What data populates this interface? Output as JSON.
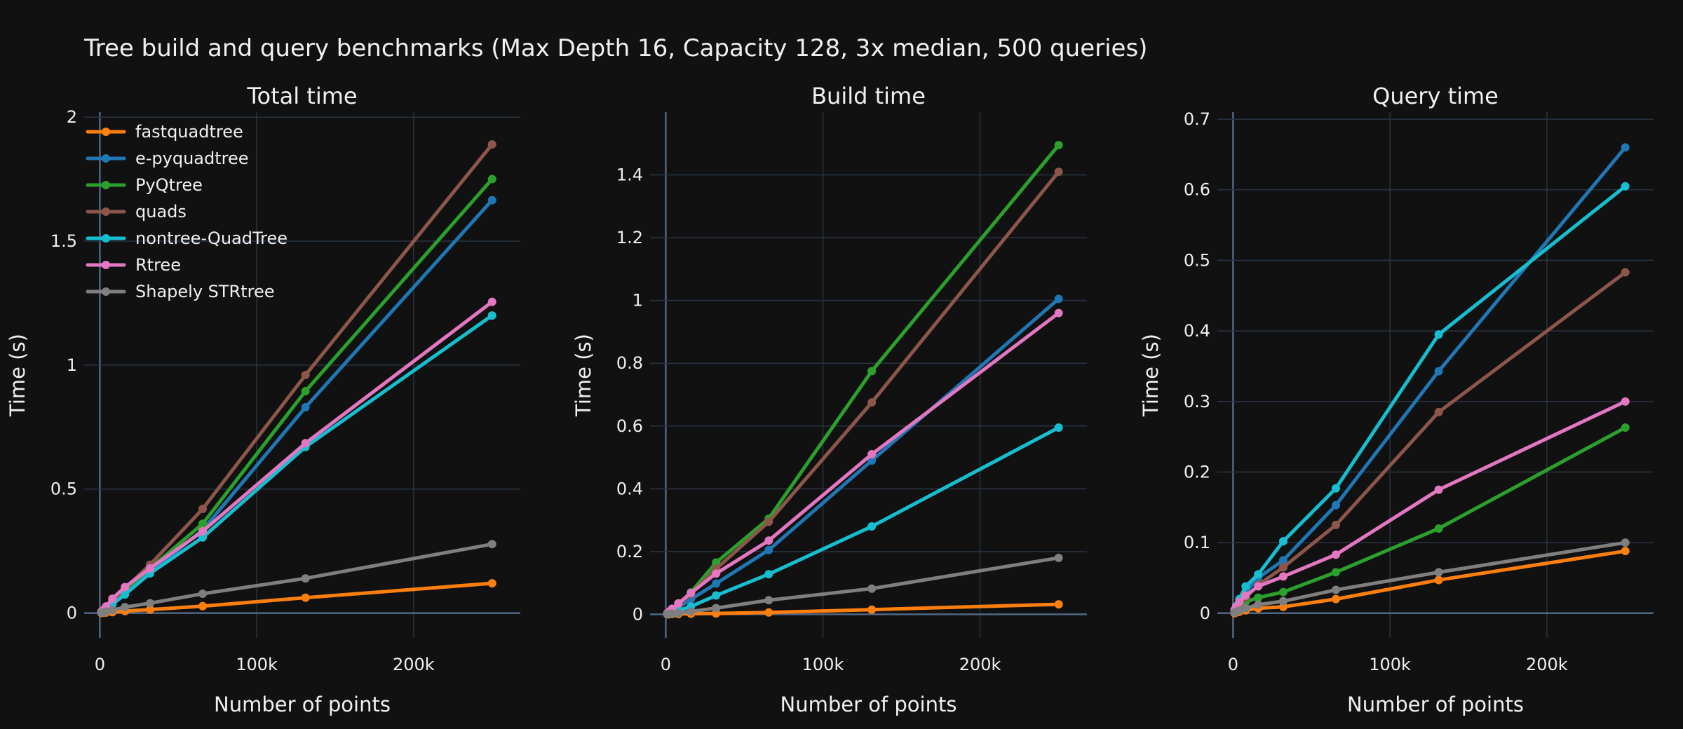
{
  "title": "Tree build and query benchmarks (Max Depth 16, Capacity 128, 3x median, 500 queries)",
  "colors": {
    "background": "#111111",
    "grid": "#283442",
    "zeroline": "#506784",
    "text": "#f0f0f0"
  },
  "series_meta": [
    {
      "name": "fastquadtree",
      "color": "#ff7f0e"
    },
    {
      "name": "e-pyquadtree",
      "color": "#1f77b4"
    },
    {
      "name": "PyQtree",
      "color": "#2ca02c"
    },
    {
      "name": "quads",
      "color": "#8c564b"
    },
    {
      "name": "nontree-QuadTree",
      "color": "#17becf"
    },
    {
      "name": "Rtree",
      "color": "#e377c2"
    },
    {
      "name": "Shapely STRtree",
      "color": "#7f7f7f"
    }
  ],
  "chart_data": [
    {
      "type": "line",
      "title": "Total time",
      "xlabel": "Number of points",
      "ylabel": "Time (s)",
      "xlim": [
        -10000,
        268000
      ],
      "ylim": [
        -0.1,
        2.02
      ],
      "xticks": [
        0,
        100000,
        200000
      ],
      "xtick_labels": [
        "0",
        "100k",
        "200k"
      ],
      "yticks": [
        0,
        0.5,
        1,
        1.5,
        2
      ],
      "ytick_labels": [
        "0",
        "0.5",
        "1",
        "1.5",
        "2"
      ],
      "legend": "top-left",
      "x": [
        1000,
        2000,
        4000,
        8000,
        16000,
        32000,
        65536,
        131072,
        250000
      ],
      "series": [
        {
          "name": "fastquadtree",
          "values": [
            0.0,
            0.001,
            0.002,
            0.004,
            0.008,
            0.014,
            0.028,
            0.062,
            0.12
          ]
        },
        {
          "name": "e-pyquadtree",
          "values": [
            0.004,
            0.008,
            0.018,
            0.04,
            0.085,
            0.165,
            0.335,
            0.83,
            1.665
          ]
        },
        {
          "name": "PyQtree",
          "values": [
            0.005,
            0.01,
            0.022,
            0.045,
            0.095,
            0.18,
            0.36,
            0.895,
            1.75
          ]
        },
        {
          "name": "quads",
          "values": [
            0.006,
            0.012,
            0.025,
            0.05,
            0.1,
            0.195,
            0.42,
            0.96,
            1.89
          ]
        },
        {
          "name": "nontree-QuadTree",
          "values": [
            0.004,
            0.008,
            0.016,
            0.035,
            0.075,
            0.16,
            0.305,
            0.67,
            1.2
          ]
        },
        {
          "name": "Rtree",
          "values": [
            0.005,
            0.011,
            0.027,
            0.058,
            0.105,
            0.18,
            0.33,
            0.685,
            1.255
          ]
        },
        {
          "name": "Shapely STRtree",
          "values": [
            0.001,
            0.003,
            0.006,
            0.012,
            0.024,
            0.04,
            0.078,
            0.14,
            0.278
          ]
        }
      ]
    },
    {
      "type": "line",
      "title": "Build time",
      "xlabel": "Number of points",
      "ylabel": "Time (s)",
      "xlim": [
        -10000,
        268000
      ],
      "ylim": [
        -0.075,
        1.6
      ],
      "xticks": [
        0,
        100000,
        200000
      ],
      "xtick_labels": [
        "0",
        "100k",
        "200k"
      ],
      "yticks": [
        0,
        0.2,
        0.4,
        0.6,
        0.8,
        1,
        1.2,
        1.4
      ],
      "ytick_labels": [
        "0",
        "0.2",
        "0.4",
        "0.6",
        "0.8",
        "1",
        "1.2",
        "1.4"
      ],
      "x": [
        1000,
        2000,
        4000,
        8000,
        16000,
        32000,
        65536,
        131072,
        250000
      ],
      "series": [
        {
          "name": "fastquadtree",
          "values": [
            0.0,
            0.0,
            0.001,
            0.001,
            0.002,
            0.003,
            0.006,
            0.015,
            0.032
          ]
        },
        {
          "name": "e-pyquadtree",
          "values": [
            0.002,
            0.005,
            0.01,
            0.022,
            0.048,
            0.098,
            0.205,
            0.49,
            1.005
          ]
        },
        {
          "name": "PyQtree",
          "values": [
            0.003,
            0.007,
            0.015,
            0.032,
            0.07,
            0.165,
            0.305,
            0.775,
            1.495
          ]
        },
        {
          "name": "quads",
          "values": [
            0.003,
            0.007,
            0.014,
            0.03,
            0.065,
            0.145,
            0.295,
            0.675,
            1.41
          ]
        },
        {
          "name": "nontree-QuadTree",
          "values": [
            0.001,
            0.003,
            0.006,
            0.012,
            0.025,
            0.06,
            0.128,
            0.28,
            0.595
          ]
        },
        {
          "name": "Rtree",
          "values": [
            0.003,
            0.008,
            0.018,
            0.035,
            0.068,
            0.13,
            0.235,
            0.51,
            0.96
          ]
        },
        {
          "name": "Shapely STRtree",
          "values": [
            0.0,
            0.001,
            0.002,
            0.004,
            0.009,
            0.02,
            0.045,
            0.082,
            0.18
          ]
        }
      ]
    },
    {
      "type": "line",
      "title": "Query time",
      "xlabel": "Number of points",
      "ylabel": "Time (s)",
      "xlim": [
        -10000,
        268000
      ],
      "ylim": [
        -0.035,
        0.71
      ],
      "xticks": [
        0,
        100000,
        200000
      ],
      "xtick_labels": [
        "0",
        "100k",
        "200k"
      ],
      "yticks": [
        0,
        0.1,
        0.2,
        0.3,
        0.4,
        0.5,
        0.6,
        0.7
      ],
      "ytick_labels": [
        "0",
        "0.1",
        "0.2",
        "0.3",
        "0.4",
        "0.5",
        "0.6",
        "0.7"
      ],
      "x": [
        1000,
        2000,
        4000,
        8000,
        16000,
        32000,
        65536,
        131072,
        250000
      ],
      "series": [
        {
          "name": "fastquadtree",
          "values": [
            0.0,
            0.001,
            0.002,
            0.004,
            0.007,
            0.009,
            0.02,
            0.047,
            0.088
          ]
        },
        {
          "name": "e-pyquadtree",
          "values": [
            0.005,
            0.01,
            0.016,
            0.03,
            0.05,
            0.075,
            0.153,
            0.343,
            0.66
          ]
        },
        {
          "name": "PyQtree",
          "values": [
            0.004,
            0.007,
            0.012,
            0.016,
            0.022,
            0.03,
            0.058,
            0.12,
            0.263
          ]
        },
        {
          "name": "quads",
          "values": [
            0.003,
            0.007,
            0.012,
            0.022,
            0.04,
            0.065,
            0.125,
            0.285,
            0.483
          ]
        },
        {
          "name": "nontree-QuadTree",
          "values": [
            0.004,
            0.01,
            0.02,
            0.038,
            0.055,
            0.102,
            0.177,
            0.395,
            0.605
          ]
        },
        {
          "name": "Rtree",
          "values": [
            0.005,
            0.009,
            0.016,
            0.025,
            0.038,
            0.052,
            0.083,
            0.175,
            0.3
          ]
        },
        {
          "name": "Shapely STRtree",
          "values": [
            0.001,
            0.002,
            0.004,
            0.007,
            0.012,
            0.017,
            0.033,
            0.058,
            0.1
          ]
        }
      ]
    }
  ]
}
